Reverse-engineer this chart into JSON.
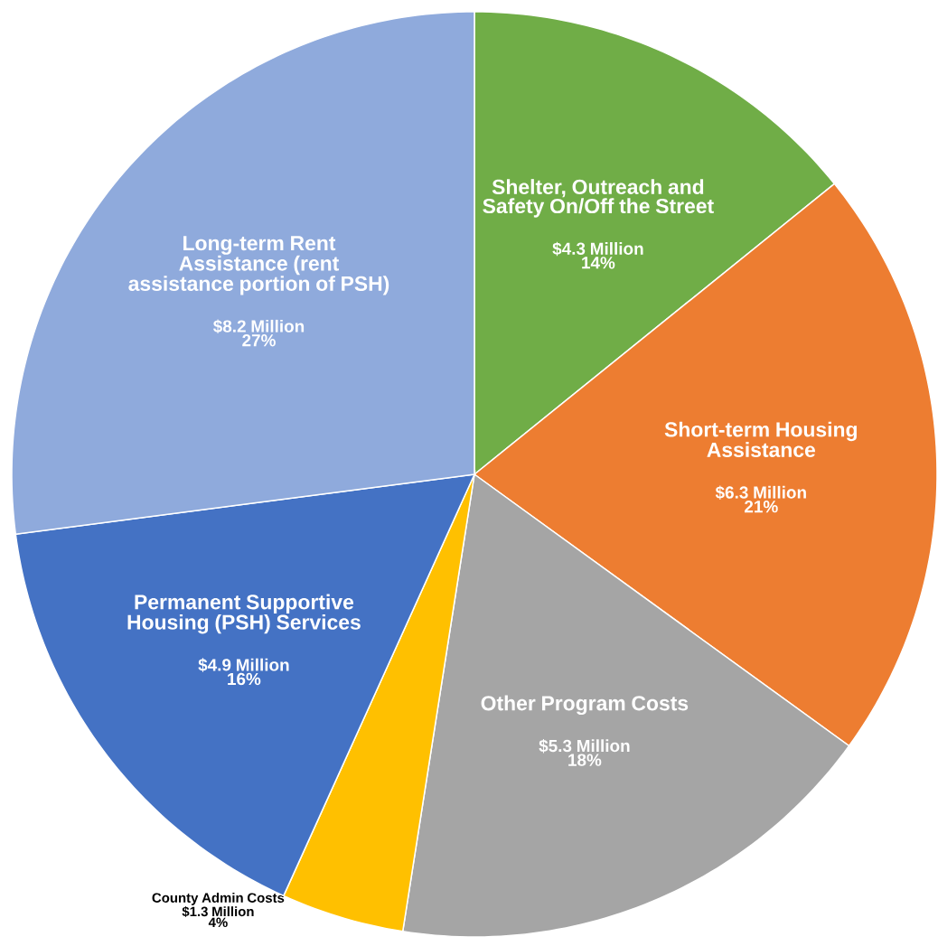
{
  "chart_data": {
    "type": "pie",
    "categories": [
      "Shelter, Outreach and Safety On/Off the Street",
      "Short-term Housing Assistance",
      "Other Program Costs",
      "County Admin Costs",
      "Permanent Supportive Housing (PSH) Services",
      "Long-term Rent Assistance (rent assistance portion of PSH)"
    ],
    "values": [
      4.3,
      6.3,
      5.3,
      1.3,
      4.9,
      8.2
    ],
    "value_labels": [
      "$4.3 Million",
      "$6.3 Million",
      "$5.3 Million",
      "$1.3 Million",
      "$4.9 Million",
      "$8.2 Million"
    ],
    "colors": [
      "#70ad47",
      "#ed7d31",
      "#a5a5a5",
      "#ffc000",
      "#4472c4",
      "#8faadc"
    ],
    "annotations": [
      "14%",
      "21%",
      "18%",
      "4%",
      "16%",
      "27%"
    ]
  }
}
